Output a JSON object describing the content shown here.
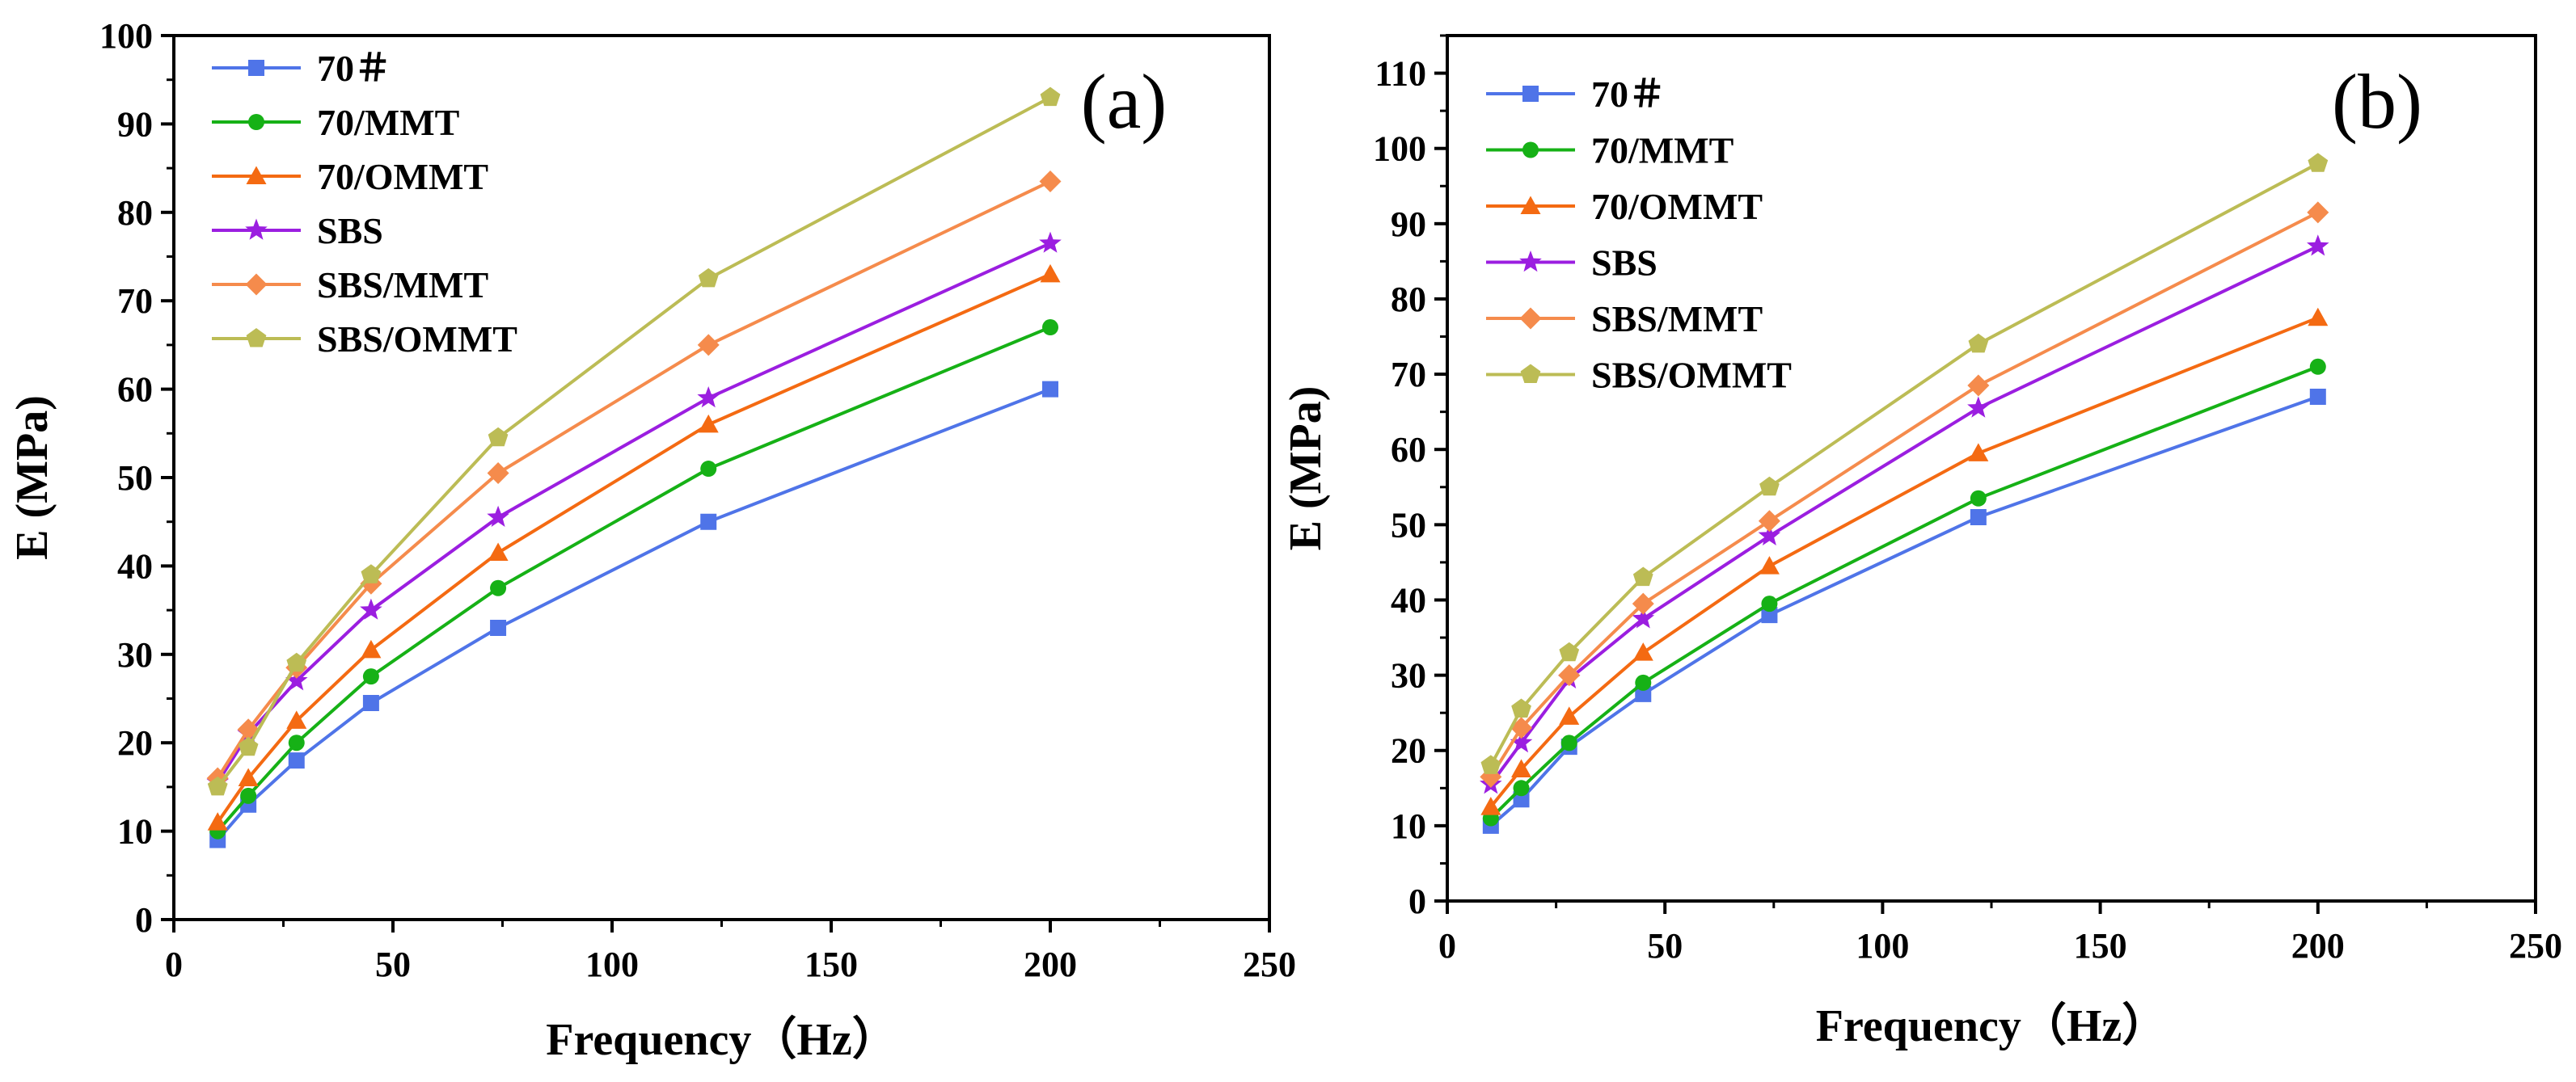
{
  "colors": {
    "series": [
      "#4f74e8",
      "#16b116",
      "#f46a12",
      "#9b1ee0",
      "#f58b4c",
      "#bcbc55"
    ],
    "axis": "#000000",
    "background": "#ffffff"
  },
  "legend_markers": [
    "square",
    "circle",
    "triangle",
    "star",
    "diamond",
    "pentagon"
  ],
  "chart_data": [
    {
      "type": "line",
      "panel_label": "(a)",
      "xlabel": "Frequency（Hz）",
      "ylabel": "E (MPa)",
      "xlim": [
        0,
        250
      ],
      "ylim": [
        0,
        100
      ],
      "x_ticks": [
        0,
        50,
        100,
        150,
        200,
        250
      ],
      "y_ticks": [
        0,
        10,
        20,
        30,
        40,
        50,
        60,
        70,
        80,
        90,
        100
      ],
      "x_tick_labels": [
        "0",
        "50",
        "100",
        "150",
        "200",
        "250"
      ],
      "y_tick_labels": [
        "0",
        "10",
        "20",
        "30",
        "40",
        "50",
        "60",
        "70",
        "80",
        "90",
        "100"
      ],
      "legend_position": "top-left",
      "x": [
        10,
        17,
        28,
        45,
        74,
        122,
        200
      ],
      "series": [
        {
          "name": "70＃",
          "values": [
            9,
            13,
            18,
            24.5,
            33,
            45,
            60
          ]
        },
        {
          "name": "70/MMT",
          "values": [
            10,
            14,
            20,
            27.5,
            37.5,
            51,
            67
          ]
        },
        {
          "name": "70/OMMT",
          "values": [
            11,
            16,
            22.5,
            30.5,
            41.5,
            56,
            73
          ]
        },
        {
          "name": "SBS",
          "values": [
            15.5,
            21,
            27,
            35,
            45.5,
            59,
            76.5
          ]
        },
        {
          "name": "SBS/MMT",
          "values": [
            16,
            21.5,
            28.5,
            38,
            50.5,
            65,
            83.5
          ]
        },
        {
          "name": "SBS/OMMT",
          "values": [
            15,
            19.5,
            29,
            39,
            54.5,
            72.5,
            93
          ]
        }
      ]
    },
    {
      "type": "line",
      "panel_label": "(b)",
      "xlabel": "Frequency（Hz）",
      "ylabel": "E (MPa)",
      "xlim": [
        0,
        250
      ],
      "ylim": [
        0,
        115
      ],
      "x_ticks": [
        0,
        50,
        100,
        150,
        200,
        250
      ],
      "y_ticks": [
        0,
        10,
        20,
        30,
        40,
        50,
        60,
        70,
        80,
        90,
        100,
        110
      ],
      "x_tick_labels": [
        "0",
        "50",
        "100",
        "150",
        "200",
        "250"
      ],
      "y_tick_labels": [
        "0",
        "10",
        "20",
        "30",
        "40",
        "50",
        "60",
        "70",
        "80",
        "90",
        "100",
        "110"
      ],
      "legend_position": "top-left",
      "x": [
        10,
        17,
        28,
        45,
        74,
        122,
        200
      ],
      "series": [
        {
          "name": "70＃",
          "values": [
            10,
            13.5,
            20.5,
            27.5,
            38,
            51,
            67
          ]
        },
        {
          "name": "70/MMT",
          "values": [
            11,
            15,
            21,
            29,
            39.5,
            53.5,
            71
          ]
        },
        {
          "name": "70/OMMT",
          "values": [
            12.5,
            17.5,
            24.5,
            33,
            44.5,
            59.5,
            77.5
          ]
        },
        {
          "name": "SBS",
          "values": [
            15.5,
            21,
            29.5,
            37.5,
            48.5,
            65.5,
            87
          ]
        },
        {
          "name": "SBS/MMT",
          "values": [
            16.5,
            23,
            30,
            39.5,
            50.5,
            68.5,
            91.5
          ]
        },
        {
          "name": "SBS/OMMT",
          "values": [
            18,
            25.5,
            33,
            43,
            55,
            74,
            98
          ]
        }
      ]
    }
  ]
}
